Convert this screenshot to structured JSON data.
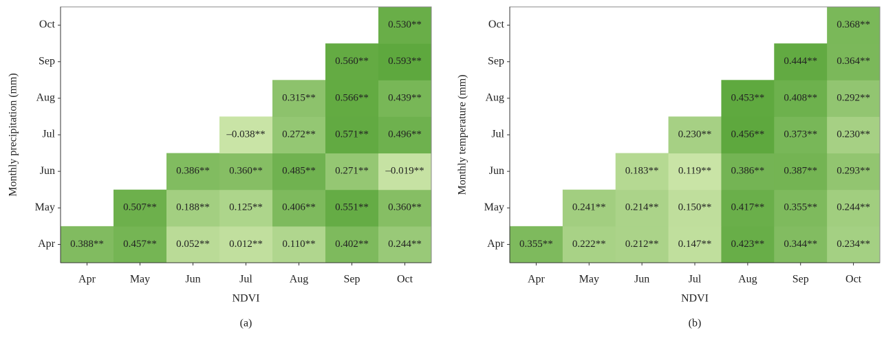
{
  "chart_data": [
    {
      "type": "heatmap",
      "panel_label": "(a)",
      "x_label": "NDVI",
      "y_label": "Monthly precipitation (mm)",
      "x_categories": [
        "Apr",
        "May",
        "Jun",
        "Jul",
        "Aug",
        "Sep",
        "Oct"
      ],
      "y_categories": [
        "Apr",
        "May",
        "Jun",
        "Jul",
        "Aug",
        "Sep",
        "Oct"
      ],
      "colors": [
        "#c9e4a6",
        "#5ea83e"
      ],
      "values": [
        [
          0.388,
          0.457,
          0.052,
          0.012,
          0.11,
          0.402,
          0.244
        ],
        [
          null,
          0.507,
          0.188,
          0.125,
          0.406,
          0.551,
          0.36
        ],
        [
          null,
          null,
          0.386,
          0.36,
          0.485,
          0.271,
          -0.019
        ],
        [
          null,
          null,
          null,
          -0.038,
          0.272,
          0.571,
          0.496
        ],
        [
          null,
          null,
          null,
          null,
          0.315,
          0.566,
          0.439
        ],
        [
          null,
          null,
          null,
          null,
          null,
          0.56,
          0.593
        ],
        [
          null,
          null,
          null,
          null,
          null,
          null,
          0.53
        ]
      ],
      "value_labels": [
        [
          "0.388**",
          "0.457**",
          "0.052**",
          "0.012**",
          "0.110**",
          "0.402**",
          "0.244**"
        ],
        [
          null,
          "0.507**",
          "0.188**",
          "0.125**",
          "0.406**",
          "0.551**",
          "0.360**"
        ],
        [
          null,
          null,
          "0.386**",
          "0.360**",
          "0.485**",
          "0.271**",
          "–0.019**"
        ],
        [
          null,
          null,
          null,
          "–0.038**",
          "0.272**",
          "0.571**",
          "0.496**"
        ],
        [
          null,
          null,
          null,
          null,
          "0.315**",
          "0.566**",
          "0.439**"
        ],
        [
          null,
          null,
          null,
          null,
          null,
          "0.560**",
          "0.593**"
        ],
        [
          null,
          null,
          null,
          null,
          null,
          null,
          "0.530**"
        ]
      ]
    },
    {
      "type": "heatmap",
      "panel_label": "(b)",
      "x_label": "NDVI",
      "y_label": "Monthly temperature (mm)",
      "x_categories": [
        "Apr",
        "May",
        "Jun",
        "Jul",
        "Aug",
        "Sep",
        "Oct"
      ],
      "y_categories": [
        "Apr",
        "May",
        "Jun",
        "Jul",
        "Aug",
        "Sep",
        "Oct"
      ],
      "colors": [
        "#c9e4a6",
        "#5ea83e"
      ],
      "values": [
        [
          0.355,
          0.222,
          0.212,
          0.147,
          0.423,
          0.344,
          0.234
        ],
        [
          null,
          0.241,
          0.214,
          0.15,
          0.417,
          0.355,
          0.244
        ],
        [
          null,
          null,
          0.183,
          0.119,
          0.386,
          0.387,
          0.293
        ],
        [
          null,
          null,
          null,
          0.23,
          0.456,
          0.373,
          0.23
        ],
        [
          null,
          null,
          null,
          null,
          0.453,
          0.408,
          0.292
        ],
        [
          null,
          null,
          null,
          null,
          null,
          0.444,
          0.364
        ],
        [
          null,
          null,
          null,
          null,
          null,
          null,
          0.368
        ]
      ],
      "value_labels": [
        [
          "0.355**",
          "0.222**",
          "0.212**",
          "0.147**",
          "0.423**",
          "0.344**",
          "0.234**"
        ],
        [
          null,
          "0.241**",
          "0.214**",
          "0.150**",
          "0.417**",
          "0.355**",
          "0.244**"
        ],
        [
          null,
          null,
          "0.183**",
          "0.119**",
          "0.386**",
          "0.387**",
          "0.293**"
        ],
        [
          null,
          null,
          null,
          "0.230**",
          "0.456**",
          "0.373**",
          "0.230**"
        ],
        [
          null,
          null,
          null,
          null,
          "0.453**",
          "0.408**",
          "0.292**"
        ],
        [
          null,
          null,
          null,
          null,
          null,
          "0.444**",
          "0.364**"
        ],
        [
          null,
          null,
          null,
          null,
          null,
          null,
          "0.368**"
        ]
      ]
    }
  ]
}
